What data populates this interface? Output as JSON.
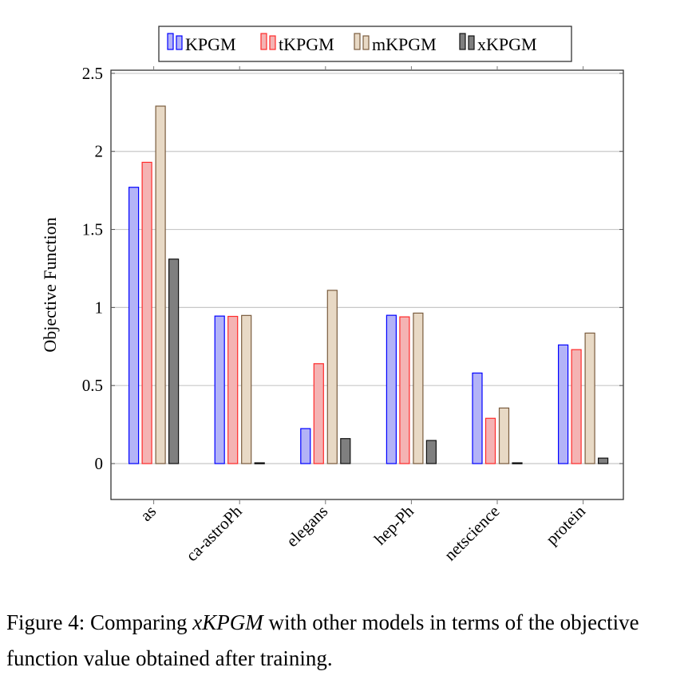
{
  "chart_data": {
    "type": "bar",
    "title": "",
    "xlabel": "",
    "ylabel": "Objective Function",
    "ylim": [
      -0.23,
      2.52
    ],
    "yticks": [
      "0",
      "0.5",
      "1",
      "1.5",
      "2",
      "2.5"
    ],
    "ytick_values": [
      0,
      0.5,
      1,
      1.5,
      2,
      2.5
    ],
    "grid": "horizontal",
    "legend_position": "top-center",
    "categories": [
      "as",
      "ca-astroPh",
      "elegans",
      "hep-Ph",
      "netscience",
      "protein"
    ],
    "series": [
      {
        "name": "KPGM",
        "fill": "#b3b3f7",
        "stroke": "#0000ff",
        "values": [
          1.77,
          0.945,
          0.224,
          0.95,
          0.58,
          0.76
        ]
      },
      {
        "name": "tKPGM",
        "fill": "#f4b3b3",
        "stroke": "#ff2a2a",
        "values": [
          1.93,
          0.943,
          0.64,
          0.94,
          0.29,
          0.73
        ]
      },
      {
        "name": "mKPGM",
        "fill": "#e8d9c5",
        "stroke": "#7a5c3e",
        "values": [
          2.29,
          0.949,
          1.11,
          0.964,
          0.356,
          0.836
        ]
      },
      {
        "name": "xKPGM",
        "fill": "#7f7f7f",
        "stroke": "#111111",
        "values": [
          1.31,
          0.005,
          0.16,
          0.148,
          0.005,
          0.035
        ]
      }
    ]
  },
  "caption": {
    "prefix": "Figure 4: Comparing ",
    "emph": "xKPGM",
    "rest": " with other models in terms of the objective function value obtained after training."
  }
}
